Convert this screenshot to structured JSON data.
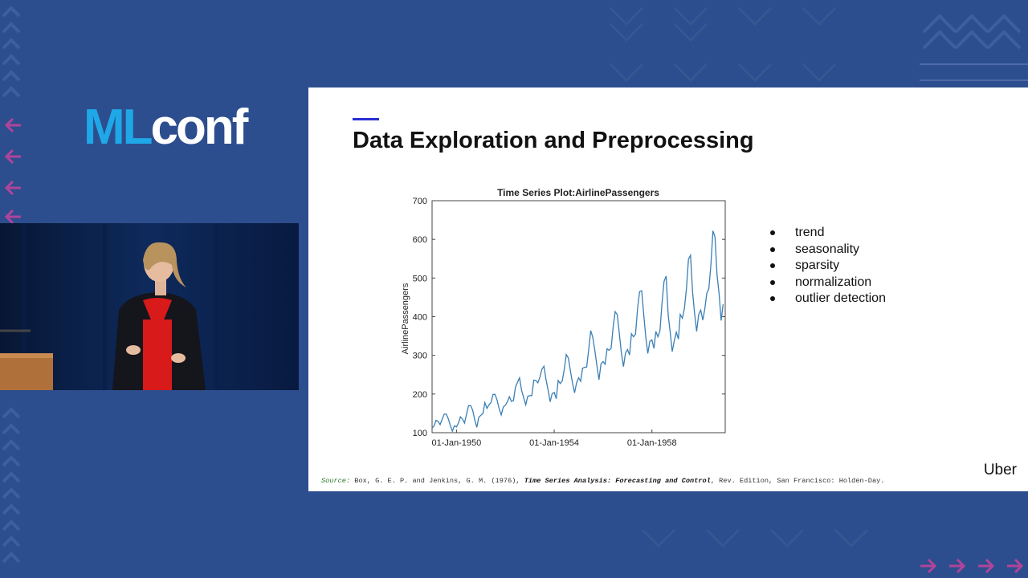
{
  "conference": {
    "logo_ml": "ML",
    "logo_conf": "conf"
  },
  "slide": {
    "title": "Data Exploration and Preprocessing",
    "bullets": [
      "trend",
      "seasonality",
      "sparsity",
      "normalization",
      "outlier detection"
    ],
    "source_label": "Source:",
    "source_authors": "Box, G. E. P. and Jenkins, G. M. (1976),",
    "source_book": "Time Series Analysis: Forecasting and Control",
    "source_rest": ", Rev. Edition, San Francisco: Holden-Day.",
    "brand": "Uber"
  },
  "colors": {
    "background": "#2d4e8e",
    "logo_ml": "#1fa8e8",
    "accent": "#2a2fd4",
    "line": "#3a7fb5"
  },
  "chart_data": {
    "type": "line",
    "title": "Time Series Plot:AirlinePassengers",
    "ylabel": "AirlinePassengers",
    "xlabel": "",
    "ylim": [
      100,
      700
    ],
    "yticks": [
      100,
      200,
      300,
      400,
      500,
      600,
      700
    ],
    "xlim": [
      "01-Jan-1949",
      "01-Jan-1961"
    ],
    "xticks": [
      "01-Jan-1950",
      "01-Jan-1954",
      "01-Jan-1958"
    ],
    "start_year": 1949,
    "values": [
      112,
      118,
      132,
      129,
      121,
      135,
      148,
      148,
      136,
      119,
      104,
      118,
      115,
      126,
      141,
      135,
      125,
      149,
      170,
      170,
      158,
      133,
      114,
      140,
      145,
      150,
      178,
      163,
      172,
      178,
      199,
      199,
      184,
      162,
      146,
      166,
      171,
      180,
      193,
      181,
      183,
      218,
      230,
      242,
      209,
      191,
      172,
      194,
      196,
      196,
      236,
      235,
      229,
      243,
      264,
      272,
      237,
      211,
      180,
      201,
      204,
      188,
      235,
      227,
      234,
      264,
      302,
      293,
      259,
      229,
      203,
      229,
      242,
      233,
      267,
      269,
      270,
      315,
      364,
      347,
      312,
      274,
      237,
      278,
      284,
      277,
      317,
      313,
      318,
      374,
      413,
      405,
      355,
      306,
      271,
      306,
      315,
      301,
      356,
      348,
      355,
      422,
      465,
      467,
      404,
      347,
      305,
      336,
      340,
      318,
      362,
      348,
      363,
      435,
      491,
      505,
      404,
      359,
      310,
      337,
      360,
      342,
      406,
      396,
      420,
      472,
      548,
      559,
      463,
      407,
      362,
      405,
      417,
      391,
      419,
      461,
      472,
      535,
      622,
      606,
      508,
      461,
      390,
      432
    ]
  }
}
